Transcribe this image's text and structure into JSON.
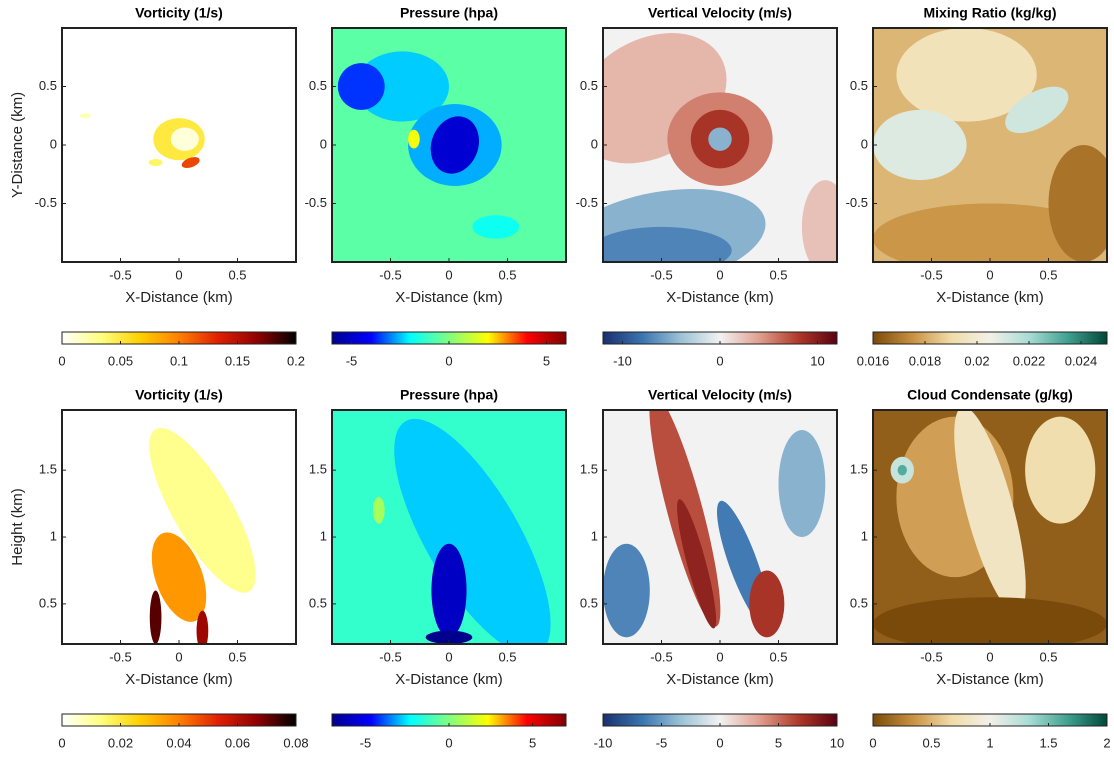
{
  "chart_data": [
    {
      "type": "contour",
      "title": "Vorticity (1/s)",
      "xlabel": "X-Distance (km)",
      "ylabel": "Y-Distance (km)",
      "xlim": [
        -1,
        1
      ],
      "ylim": [
        -1,
        1
      ],
      "xticks": [
        -0.5,
        0,
        0.5
      ],
      "yticks": [
        -0.5,
        0,
        0.5
      ],
      "colormap": [
        "#ffffff",
        "#ffff80",
        "#ffd000",
        "#ff8000",
        "#e02000",
        "#900000",
        "#000000"
      ],
      "clim": [
        0,
        0.2
      ],
      "cticks": [
        0,
        0.05,
        0.1,
        0.15,
        0.2
      ]
    },
    {
      "type": "contour",
      "title": "Pressure (hpa)",
      "xlabel": "X-Distance (km)",
      "xlim": [
        -1,
        1
      ],
      "ylim": [
        -1,
        1
      ],
      "xticks": [
        -0.5,
        0,
        0.5
      ],
      "yticks": [
        -0.5,
        0,
        0.5
      ],
      "colormap": [
        "#00008f",
        "#0000ff",
        "#00ffff",
        "#80ff80",
        "#ffff00",
        "#ff0000",
        "#800000"
      ],
      "clim": [
        -6,
        6
      ],
      "cticks": [
        -5,
        0,
        5
      ]
    },
    {
      "type": "contour",
      "title": "Vertical Velocity (m/s)",
      "xlabel": "X-Distance (km)",
      "xlim": [
        -1,
        1
      ],
      "ylim": [
        -1,
        1
      ],
      "xticks": [
        -0.5,
        0,
        0.5
      ],
      "yticks": [
        -0.5,
        0,
        0.5
      ],
      "colormap": [
        "#1a2f6e",
        "#3a74b0",
        "#9cc2d6",
        "#f2f2f2",
        "#e0a090",
        "#b03a2a",
        "#5a0010"
      ],
      "clim": [
        -12,
        12
      ],
      "cticks": [
        -10,
        0,
        10
      ]
    },
    {
      "type": "contour",
      "title": "Mixing Ratio (kg/kg)",
      "xlabel": "X-Distance (km)",
      "xlim": [
        -1,
        1
      ],
      "ylim": [
        -1,
        1
      ],
      "xticks": [
        -0.5,
        0,
        0.5
      ],
      "yticks": [
        -0.5,
        0,
        0.5
      ],
      "colormap": [
        "#7a4a0a",
        "#c89040",
        "#f0dca8",
        "#f2f0e8",
        "#a8dcd4",
        "#40a090",
        "#004838"
      ],
      "clim": [
        0.016,
        0.025
      ],
      "cticks": [
        0.016,
        0.018,
        0.02,
        0.022,
        0.024
      ]
    },
    {
      "type": "contour",
      "title": "Vorticity (1/s)",
      "xlabel": "X-Distance (km)",
      "ylabel": "Height (km)",
      "xlim": [
        -1,
        1
      ],
      "ylim": [
        0.2,
        1.95
      ],
      "xticks": [
        -0.5,
        0,
        0.5
      ],
      "yticks": [
        0.5,
        1,
        1.5
      ],
      "colormap": [
        "#ffffff",
        "#ffff80",
        "#ffd000",
        "#ff8000",
        "#e02000",
        "#900000",
        "#000000"
      ],
      "clim": [
        0,
        0.08
      ],
      "cticks": [
        0,
        0.02,
        0.04,
        0.06,
        0.08
      ]
    },
    {
      "type": "contour",
      "title": "Pressure (hpa)",
      "xlabel": "X-Distance (km)",
      "xlim": [
        -1,
        1
      ],
      "ylim": [
        0.2,
        1.95
      ],
      "xticks": [
        -0.5,
        0,
        0.5
      ],
      "yticks": [
        0.5,
        1,
        1.5
      ],
      "colormap": [
        "#00008f",
        "#0000ff",
        "#00ffff",
        "#80ff80",
        "#ffff00",
        "#ff0000",
        "#800000"
      ],
      "clim": [
        -7,
        7
      ],
      "cticks": [
        -5,
        0,
        5
      ]
    },
    {
      "type": "contour",
      "title": "Vertical Velocity (m/s)",
      "xlabel": "X-Distance (km)",
      "xlim": [
        -1,
        1
      ],
      "ylim": [
        0.2,
        1.95
      ],
      "xticks": [
        -0.5,
        0,
        0.5
      ],
      "yticks": [
        0.5,
        1,
        1.5
      ],
      "colormap": [
        "#1a2f6e",
        "#3a74b0",
        "#9cc2d6",
        "#f2f2f2",
        "#e0a090",
        "#b03a2a",
        "#5a0010"
      ],
      "clim": [
        -10,
        10
      ],
      "cticks": [
        -10,
        -5,
        0,
        5,
        10
      ]
    },
    {
      "type": "contour",
      "title": "Cloud Condensate (g/kg)",
      "xlabel": "X-Distance (km)",
      "xlim": [
        -1,
        1
      ],
      "ylim": [
        0.2,
        1.95
      ],
      "xticks": [
        -0.5,
        0,
        0.5
      ],
      "yticks": [
        0.5,
        1,
        1.5
      ],
      "colormap": [
        "#7a4a0a",
        "#c89040",
        "#f0dca8",
        "#f2f0e8",
        "#a8dcd4",
        "#40a090",
        "#004838"
      ],
      "clim": [
        0,
        2
      ],
      "cticks": [
        0,
        0.5,
        1,
        1.5,
        2
      ]
    }
  ]
}
